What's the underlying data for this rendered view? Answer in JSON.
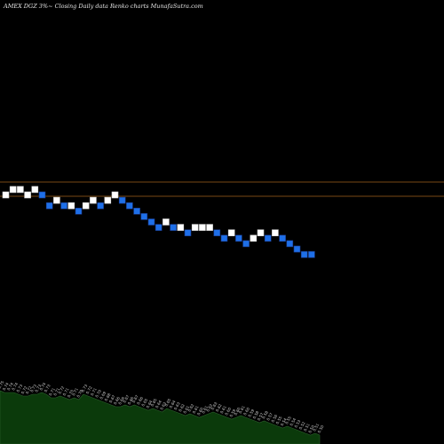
{
  "header": {
    "title": "AMEX  DGZ 3%~  Closing Daily data  Renko  charts MunafaSutra.com"
  },
  "colors": {
    "background": "#000000",
    "up_brick": "#ffffff",
    "down_brick": "#1e6fe8",
    "brick_outline": "#1a3a8a",
    "reference_line": "#a0621a",
    "volume_fill": "#0b3a0b",
    "volume_line": "#2c5f2c",
    "volume_label": "#cfcfcf"
  },
  "chart_data": {
    "type": "renko",
    "title": "AMEX  DGZ 3%~  Closing Daily data  Renko  charts MunafaSutra.com",
    "brick_size_percent": 3,
    "reference_levels": [
      0.76,
      0.62
    ],
    "bricks": [
      {
        "dir": "up",
        "level": 42
      },
      {
        "dir": "up",
        "level": 43
      },
      {
        "dir": "up",
        "level": 43
      },
      {
        "dir": "up",
        "level": 42
      },
      {
        "dir": "up",
        "level": 43
      },
      {
        "dir": "down",
        "level": 42
      },
      {
        "dir": "down",
        "level": 40
      },
      {
        "dir": "up",
        "level": 41
      },
      {
        "dir": "down",
        "level": 40
      },
      {
        "dir": "up",
        "level": 40
      },
      {
        "dir": "down",
        "level": 39
      },
      {
        "dir": "up",
        "level": 40
      },
      {
        "dir": "up",
        "level": 41
      },
      {
        "dir": "down",
        "level": 40
      },
      {
        "dir": "up",
        "level": 41
      },
      {
        "dir": "up",
        "level": 42
      },
      {
        "dir": "down",
        "level": 41
      },
      {
        "dir": "down",
        "level": 40
      },
      {
        "dir": "down",
        "level": 39
      },
      {
        "dir": "down",
        "level": 38
      },
      {
        "dir": "down",
        "level": 37
      },
      {
        "dir": "down",
        "level": 36
      },
      {
        "dir": "up",
        "level": 37
      },
      {
        "dir": "down",
        "level": 36
      },
      {
        "dir": "up",
        "level": 36
      },
      {
        "dir": "down",
        "level": 35
      },
      {
        "dir": "up",
        "level": 36
      },
      {
        "dir": "up",
        "level": 36
      },
      {
        "dir": "up",
        "level": 36
      },
      {
        "dir": "down",
        "level": 35
      },
      {
        "dir": "down",
        "level": 34
      },
      {
        "dir": "up",
        "level": 35
      },
      {
        "dir": "down",
        "level": 34
      },
      {
        "dir": "down",
        "level": 33
      },
      {
        "dir": "up",
        "level": 34
      },
      {
        "dir": "up",
        "level": 35
      },
      {
        "dir": "down",
        "level": 34
      },
      {
        "dir": "up",
        "level": 35
      },
      {
        "dir": "down",
        "level": 34
      },
      {
        "dir": "down",
        "level": 33
      },
      {
        "dir": "down",
        "level": 32
      },
      {
        "dir": "down",
        "level": 31
      },
      {
        "dir": "down",
        "level": 31
      }
    ],
    "volume_labels": [
      "0.75",
      "0.74",
      "0.74",
      "0.74",
      "0.73",
      "0.72",
      "0.72",
      "0.73",
      "0.73",
      "0.74",
      "0.73",
      "0.71",
      "0.71",
      "0.72",
      "0.71",
      "0.70",
      "0.71",
      "0.70",
      "0.73",
      "0.72",
      "0.71",
      "0.70",
      "0.69",
      "0.68",
      "0.67",
      "0.66",
      "0.66",
      "0.67",
      "0.66",
      "0.67",
      "0.66",
      "0.65",
      "0.64",
      "0.65",
      "0.64",
      "0.63",
      "0.65",
      "0.64",
      "0.63",
      "0.62",
      "0.61",
      "0.62",
      "0.61",
      "0.60",
      "0.61",
      "0.62",
      "0.63",
      "0.62",
      "0.61",
      "0.60",
      "0.59",
      "0.60",
      "0.61",
      "0.60",
      "0.59",
      "0.58",
      "0.57",
      "0.58",
      "0.57",
      "0.56",
      "0.55",
      "0.54",
      "0.55",
      "0.54",
      "0.53",
      "0.52",
      "0.51",
      "0.50",
      "0.51",
      "0.50"
    ]
  }
}
